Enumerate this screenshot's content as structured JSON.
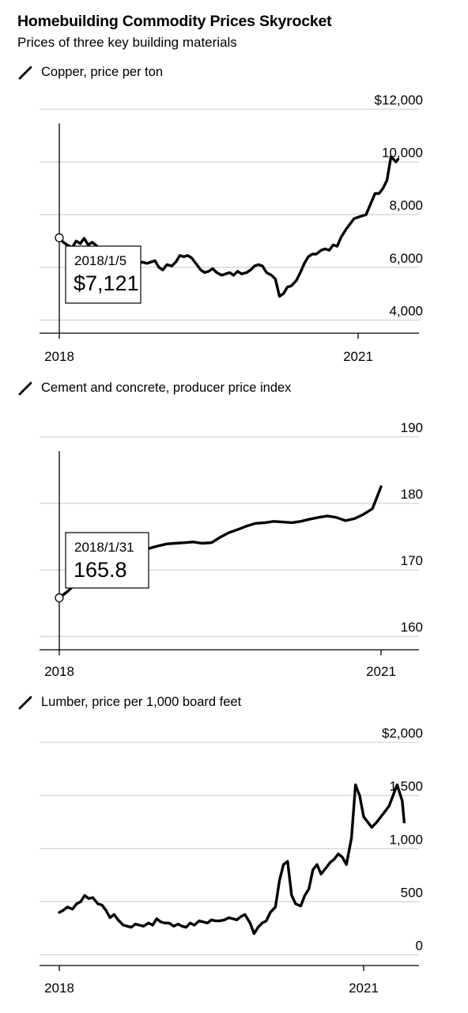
{
  "title": "Homebuilding Commodity Prices Skyrocket",
  "subtitle": "Prices of three key building materials",
  "chart_data": [
    {
      "type": "line",
      "title": "Copper, price per ton",
      "x_tick_labels": [
        "2018",
        "2021"
      ],
      "y_ticks": [
        4000,
        6000,
        8000,
        10000,
        12000
      ],
      "y_tick_labels": [
        "4,000",
        "6,000",
        "8,000",
        "10,000",
        "$12,000"
      ],
      "ylim": [
        3500,
        12000
      ],
      "tooltip": {
        "date": "2018/1/5",
        "value": "$7,121"
      },
      "series": [
        {
          "x": [
            2018.0,
            2018.04,
            2018.08,
            2018.13,
            2018.17,
            2018.21,
            2018.25,
            2018.29,
            2018.33,
            2018.38,
            2018.42,
            2018.46,
            2018.5,
            2018.54,
            2018.58,
            2018.63,
            2018.67,
            2018.71,
            2018.75,
            2018.79,
            2018.83,
            2018.88,
            2018.92,
            2018.96,
            2019.0,
            2019.04,
            2019.08,
            2019.13,
            2019.17,
            2019.21,
            2019.25,
            2019.29,
            2019.33,
            2019.38,
            2019.42,
            2019.46,
            2019.5,
            2019.54,
            2019.58,
            2019.63,
            2019.67,
            2019.71,
            2019.75,
            2019.79,
            2019.83,
            2019.88,
            2019.92,
            2019.96,
            2020.0,
            2020.04,
            2020.08,
            2020.13,
            2020.17,
            2020.21,
            2020.25,
            2020.29,
            2020.33,
            2020.38,
            2020.42,
            2020.46,
            2020.5,
            2020.54,
            2020.58,
            2020.63,
            2020.67,
            2020.71,
            2020.75,
            2020.79,
            2020.83,
            2020.88,
            2020.92,
            2020.96,
            2021.0,
            2021.04,
            2021.08,
            2021.13,
            2021.17,
            2021.21,
            2021.25,
            2021.29,
            2021.33,
            2021.38,
            2021.4
          ],
          "y": [
            7121,
            6950,
            6850,
            6750,
            7000,
            6900,
            7100,
            6850,
            6950,
            6800,
            6600,
            6400,
            6300,
            6150,
            6100,
            6050,
            6000,
            6150,
            6250,
            6100,
            6200,
            6150,
            6200,
            6250,
            6000,
            5900,
            6100,
            6050,
            6200,
            6450,
            6400,
            6450,
            6350,
            6100,
            5900,
            5800,
            5850,
            5950,
            5800,
            5700,
            5750,
            5800,
            5700,
            5850,
            5750,
            5800,
            5900,
            6050,
            6100,
            6050,
            5800,
            5700,
            5550,
            4900,
            5000,
            5250,
            5300,
            5500,
            5800,
            6150,
            6400,
            6500,
            6500,
            6650,
            6700,
            6650,
            6850,
            6800,
            7150,
            7450,
            7650,
            7850,
            7900,
            7950,
            8000,
            8450,
            8800,
            8800,
            9000,
            9300,
            10200,
            10000,
            10100
          ]
        }
      ]
    },
    {
      "type": "line",
      "title": "Cement and concrete, producer price index",
      "x_tick_labels": [
        "2018",
        "2021"
      ],
      "y_ticks": [
        160,
        170,
        180,
        190
      ],
      "y_tick_labels": [
        "160",
        "170",
        "180",
        "190"
      ],
      "ylim": [
        158,
        190
      ],
      "tooltip": {
        "date": "2018/1/31",
        "value": "165.8"
      },
      "series": [
        {
          "x": [
            2018.0,
            2018.08,
            2018.17,
            2018.25,
            2018.33,
            2018.42,
            2018.5,
            2018.58,
            2018.67,
            2018.75,
            2018.83,
            2018.92,
            2019.0,
            2019.08,
            2019.17,
            2019.25,
            2019.33,
            2019.42,
            2019.5,
            2019.58,
            2019.67,
            2019.75,
            2019.83,
            2019.92,
            2020.0,
            2020.08,
            2020.17,
            2020.25,
            2020.33,
            2020.42,
            2020.5,
            2020.58,
            2020.67,
            2020.75,
            2020.83,
            2020.92,
            2021.0
          ],
          "y": [
            165.8,
            166.8,
            168.2,
            169.0,
            170.1,
            170.6,
            170.8,
            171.3,
            172.1,
            172.8,
            173.2,
            173.6,
            173.9,
            174.0,
            174.1,
            174.2,
            174.0,
            174.1,
            174.9,
            175.6,
            176.1,
            176.6,
            177.0,
            177.1,
            177.3,
            177.2,
            177.1,
            177.3,
            177.6,
            177.9,
            178.1,
            177.9,
            177.4,
            177.7,
            178.3,
            179.2,
            182.5
          ]
        }
      ]
    },
    {
      "type": "line",
      "title": "Lumber, price per 1,000 board feet",
      "x_tick_labels": [
        "2018",
        "2021"
      ],
      "y_ticks": [
        0,
        500,
        1000,
        1500,
        2000
      ],
      "y_tick_labels": [
        "0",
        "500",
        "1,000",
        "1,500",
        "$2,000"
      ],
      "ylim": [
        -100,
        2000
      ],
      "tooltip": null,
      "series": [
        {
          "x": [
            2018.0,
            2018.04,
            2018.08,
            2018.13,
            2018.17,
            2018.21,
            2018.25,
            2018.29,
            2018.33,
            2018.38,
            2018.42,
            2018.46,
            2018.5,
            2018.54,
            2018.58,
            2018.63,
            2018.67,
            2018.71,
            2018.75,
            2018.79,
            2018.83,
            2018.88,
            2018.92,
            2018.96,
            2019.0,
            2019.04,
            2019.08,
            2019.13,
            2019.17,
            2019.21,
            2019.25,
            2019.29,
            2019.33,
            2019.38,
            2019.42,
            2019.46,
            2019.5,
            2019.54,
            2019.58,
            2019.63,
            2019.67,
            2019.71,
            2019.75,
            2019.79,
            2019.83,
            2019.88,
            2019.92,
            2019.96,
            2020.0,
            2020.04,
            2020.08,
            2020.13,
            2020.17,
            2020.21,
            2020.25,
            2020.29,
            2020.33,
            2020.38,
            2020.42,
            2020.46,
            2020.5,
            2020.54,
            2020.58,
            2020.63,
            2020.67,
            2020.71,
            2020.75,
            2020.79,
            2020.83,
            2020.88,
            2020.92,
            2020.96,
            2021.0,
            2021.04,
            2021.08,
            2021.13,
            2021.17,
            2021.21,
            2021.25,
            2021.29,
            2021.33,
            2021.38,
            2021.4
          ],
          "y": [
            400,
            420,
            450,
            430,
            480,
            500,
            560,
            530,
            540,
            480,
            470,
            420,
            350,
            380,
            330,
            280,
            270,
            260,
            290,
            280,
            270,
            300,
            280,
            340,
            310,
            300,
            300,
            270,
            290,
            270,
            260,
            300,
            280,
            320,
            310,
            300,
            330,
            320,
            320,
            330,
            350,
            340,
            330,
            360,
            380,
            300,
            200,
            260,
            300,
            320,
            400,
            450,
            700,
            850,
            880,
            560,
            480,
            460,
            560,
            620,
            800,
            850,
            760,
            820,
            870,
            900,
            950,
            920,
            850,
            1100,
            1600,
            1500,
            1300,
            1250,
            1200,
            1250,
            1300,
            1350,
            1400,
            1500,
            1600,
            1450,
            1250
          ]
        }
      ]
    }
  ]
}
